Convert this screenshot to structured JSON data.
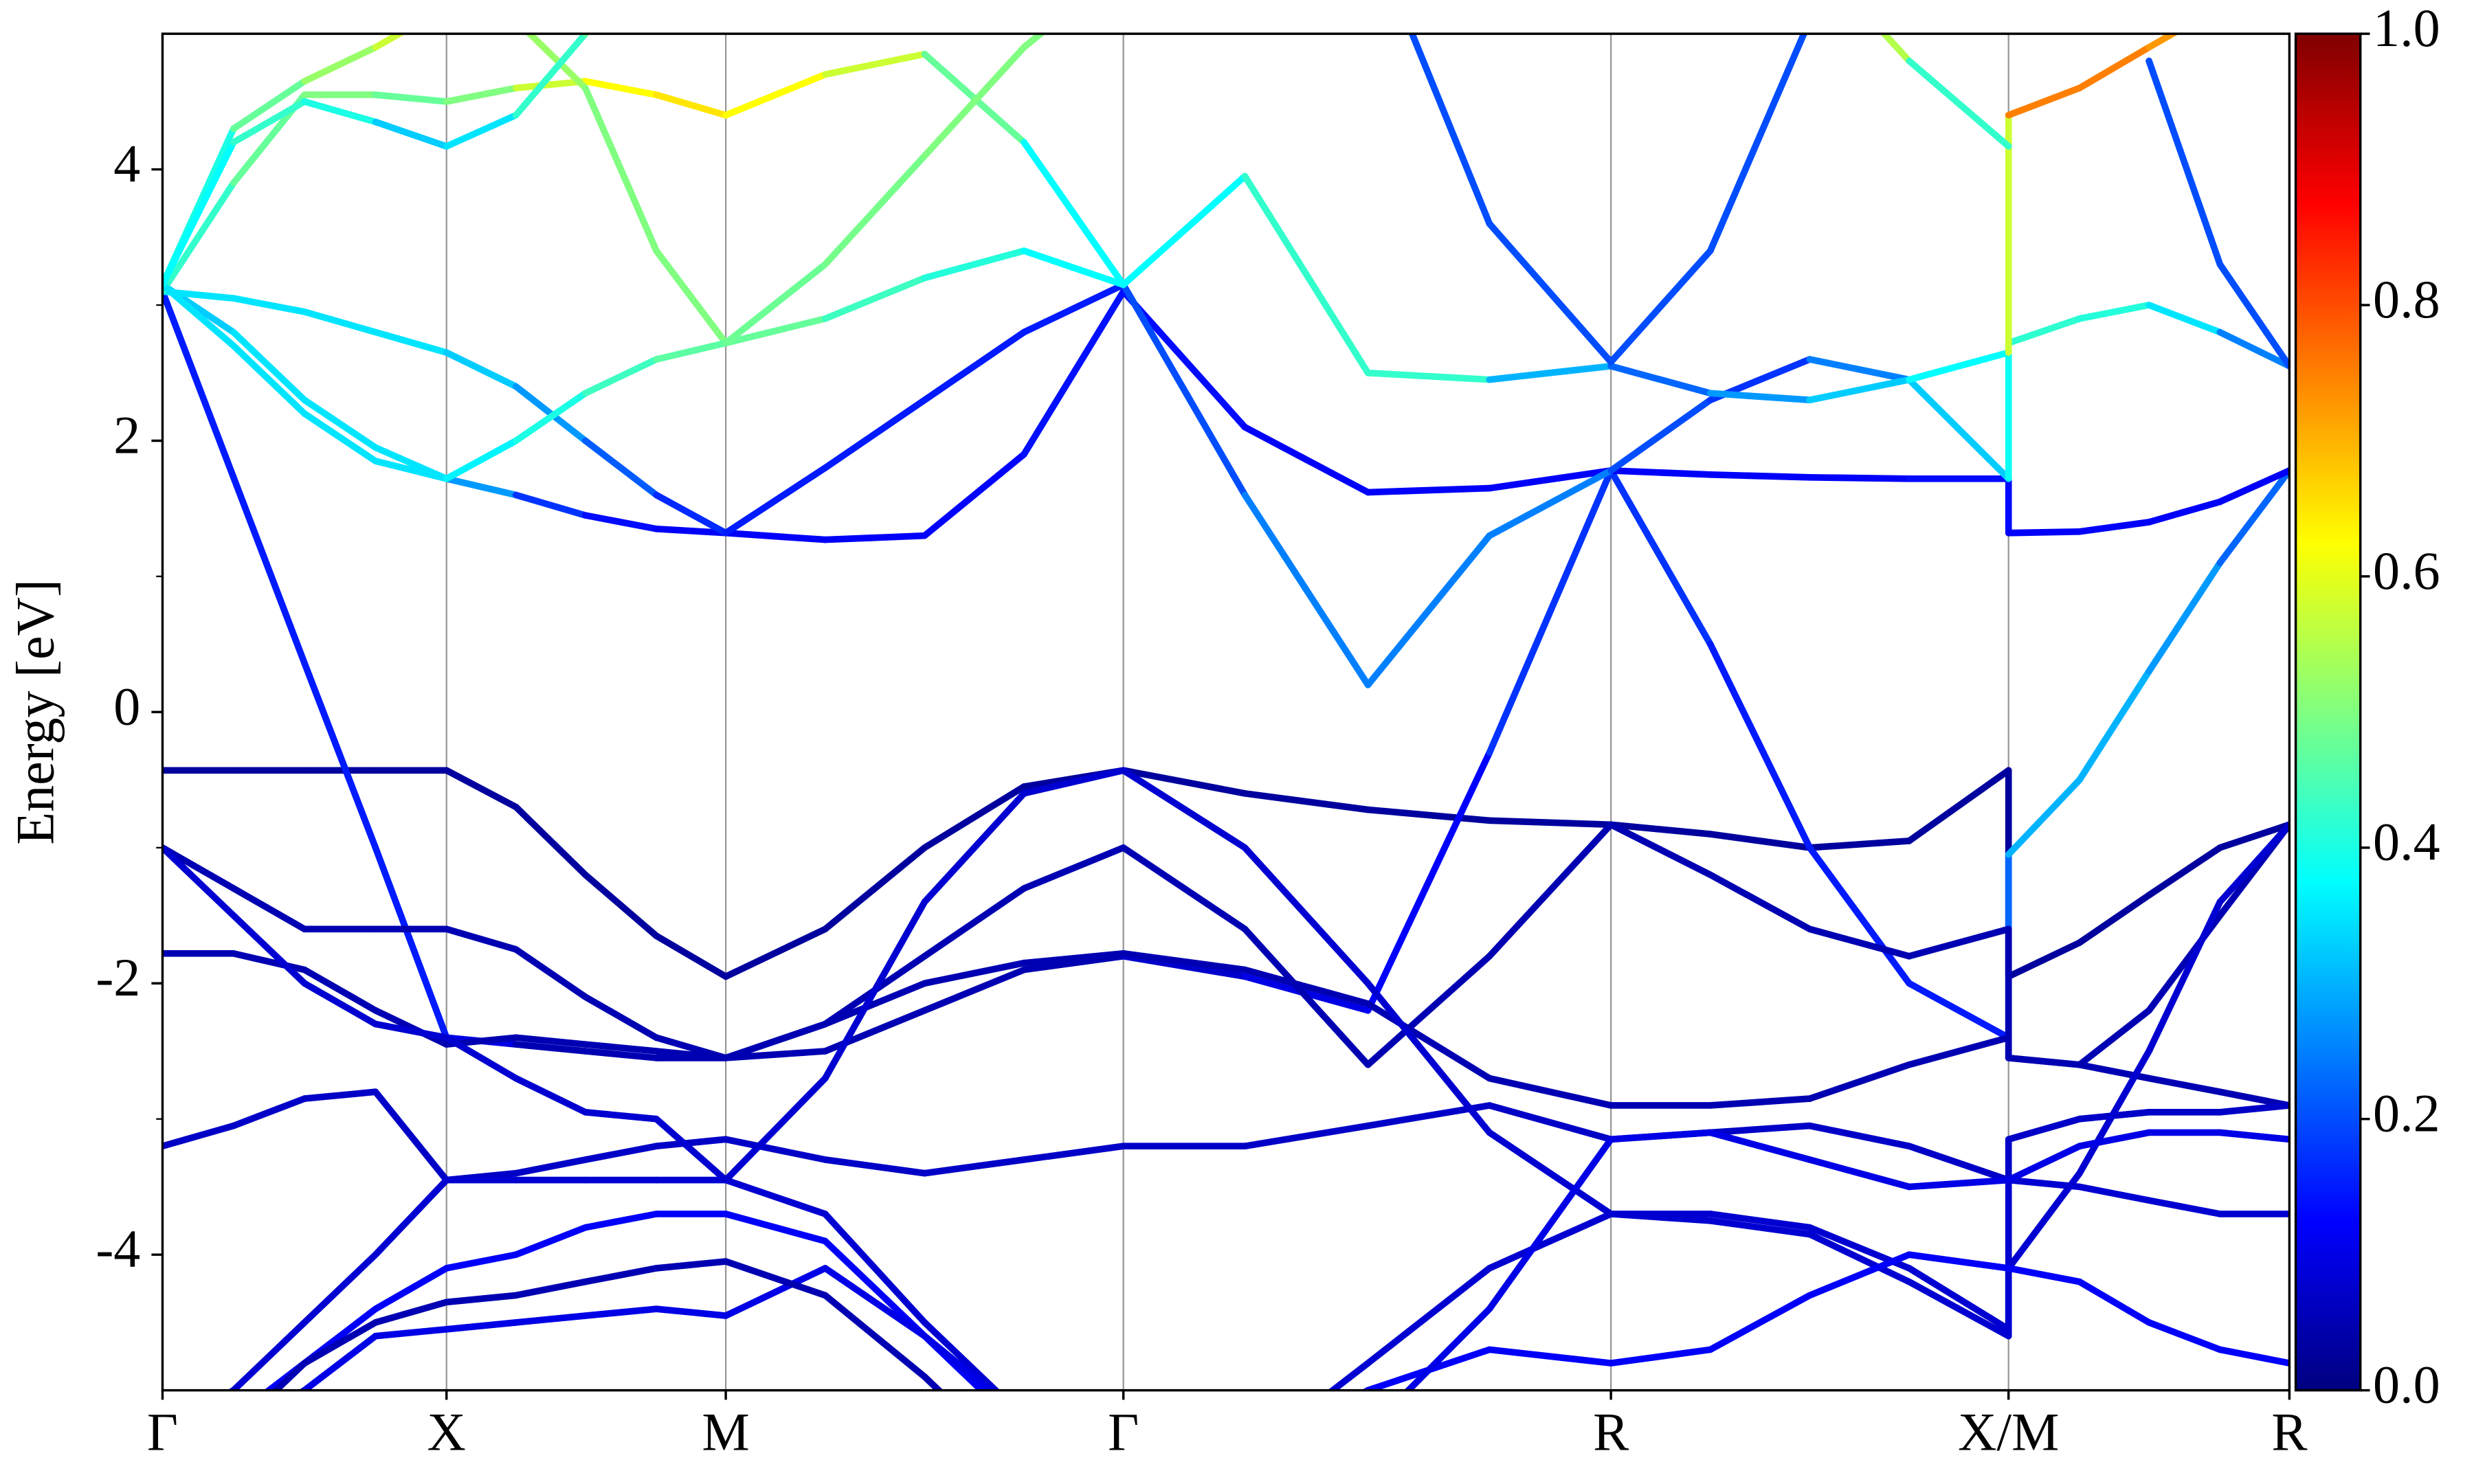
{
  "chart_data": {
    "type": "bands",
    "ylabel": "Energy [eV]",
    "x": [
      0,
      45,
      90,
      135,
      180,
      224,
      268,
      313,
      357,
      420,
      483,
      546,
      609,
      686,
      764,
      841,
      918,
      981,
      1044,
      1107,
      1170,
      1170,
      1215,
      1259,
      1304,
      1348
    ],
    "xlim": [
      0,
      1348
    ],
    "xticks": [
      {
        "value": 0,
        "label": "Γ"
      },
      {
        "value": 180,
        "label": "X"
      },
      {
        "value": 357,
        "label": "M"
      },
      {
        "value": 609,
        "label": "Γ"
      },
      {
        "value": 918,
        "label": "R"
      },
      {
        "value": 1170,
        "label": "X/M"
      },
      {
        "value": 1348,
        "label": "R"
      }
    ],
    "ylim": [
      -5,
      5
    ],
    "yticks": [
      -4,
      -2,
      0,
      2,
      4
    ],
    "yminorticks": [
      -3,
      -1,
      1,
      3
    ],
    "grid": true,
    "colormap": "jet",
    "colorbar": {
      "lim": [
        0,
        1
      ],
      "ticks": [
        {
          "value": 0,
          "label": "0.0"
        },
        {
          "value": 0.2,
          "label": "0.2"
        },
        {
          "value": 0.4,
          "label": "0.4"
        },
        {
          "value": 0.6,
          "label": "0.6"
        },
        {
          "value": 0.8,
          "label": "0.8"
        },
        {
          "value": 1,
          "label": "1.0"
        }
      ]
    },
    "series": [
      {
        "values": [
          -0.43,
          -0.43,
          -0.43,
          -0.43,
          -0.43,
          -0.7,
          -1.2,
          -1.65,
          -1.95,
          -1.6,
          -1.0,
          -0.55,
          -0.43,
          -0.6,
          -0.72,
          -0.8,
          -0.83,
          -0.9,
          -1.0,
          -0.95,
          -0.43,
          -1.95,
          -1.7,
          -1.35,
          -1.0,
          -0.83
        ],
        "weights": [
          0.03,
          0.03,
          0.03,
          0.03,
          0.03,
          0.03,
          0.03,
          0.03,
          0.03,
          0.03,
          0.03,
          0.03,
          0.03,
          0.03,
          0.03,
          0.03,
          0.03,
          0.03,
          0.03,
          0.03,
          0.03,
          0.03,
          0.03,
          0.03,
          0.03,
          0.03
        ]
      },
      {
        "values": [
          3.1,
          1.73,
          0.36,
          -1.0,
          -2.4,
          -2.45,
          -2.5,
          -2.55,
          -2.55,
          -2.5,
          -2.2,
          -1.9,
          -1.8,
          -1.95,
          -2.2,
          -0.3,
          1.78,
          0.5,
          -1.0,
          -2.0,
          -2.4,
          -1.05,
          -0.5,
          0.3,
          1.1,
          1.78
        ],
        "weights": [
          0.15,
          0.15,
          0.15,
          0.15,
          0.15,
          0.05,
          0.05,
          0.05,
          0.05,
          0.05,
          0.05,
          0.05,
          0.05,
          0.1,
          0.1,
          0.15,
          0.2,
          0.15,
          0.15,
          0.15,
          0.15,
          0.3,
          0.3,
          0.3,
          0.25,
          0.2
        ]
      },
      {
        "values": [
          3.15,
          2.8,
          2.3,
          1.95,
          1.72,
          1.6,
          1.45,
          1.35,
          1.32,
          1.27,
          1.3,
          1.9,
          3.1,
          2.1,
          1.62,
          1.65,
          1.78,
          1.75,
          1.73,
          1.72,
          1.72,
          1.32,
          1.33,
          1.4,
          1.55,
          1.78
        ],
        "weights": [
          0.3,
          0.35,
          0.35,
          0.35,
          0.35,
          0.2,
          0.15,
          0.12,
          0.12,
          0.12,
          0.12,
          0.13,
          0.15,
          0.12,
          0.12,
          0.12,
          0.12,
          0.12,
          0.12,
          0.12,
          0.15,
          0.12,
          0.12,
          0.12,
          0.12,
          0.12
        ]
      },
      {
        "values": [
          3.1,
          3.05,
          2.95,
          2.8,
          2.65,
          2.4,
          2.0,
          1.6,
          1.32,
          1.8,
          2.3,
          2.8,
          3.15,
          1.6,
          0.2,
          1.3,
          1.78,
          2.3,
          2.6,
          2.45,
          1.72,
          2.72,
          2.9,
          3.0,
          2.8,
          2.55
        ],
        "weights": [
          0.35,
          0.35,
          0.35,
          0.35,
          0.35,
          0.3,
          0.25,
          0.18,
          0.15,
          0.15,
          0.15,
          0.15,
          0.15,
          0.25,
          0.25,
          0.25,
          0.25,
          0.15,
          0.2,
          0.3,
          0.35,
          0.42,
          0.42,
          0.4,
          0.3,
          0.2
        ]
      },
      {
        "values": [
          3.1,
          3.9,
          4.55,
          4.55,
          4.5,
          4.6,
          4.65,
          4.55,
          4.4,
          4.7,
          4.85,
          4.2,
          3.15,
          3.95,
          2.5,
          2.45,
          2.55,
          2.35,
          2.3,
          2.45,
          2.65,
          4.4,
          4.6,
          4.9,
          5.2,
          5.5
        ],
        "weights": [
          0.4,
          0.45,
          0.5,
          0.5,
          0.45,
          0.55,
          0.6,
          0.65,
          0.65,
          0.6,
          0.55,
          0.4,
          0.35,
          0.4,
          0.45,
          0.4,
          0.2,
          0.25,
          0.3,
          0.35,
          0.4,
          0.75,
          0.75,
          0.75,
          0.7,
          0.6
        ]
      },
      {
        "values": [
          3.15,
          4.3,
          4.65,
          4.9,
          5.2,
          5.1,
          4.6,
          3.4,
          2.72,
          2.9,
          3.2,
          3.4,
          3.15,
          null,
          5.8,
          3.6,
          2.58,
          3.4,
          5.1,
          null,
          null,
          null,
          null,
          4.8,
          3.3,
          2.55
        ],
        "weights": [
          0.35,
          0.45,
          0.5,
          0.55,
          0.6,
          0.55,
          0.5,
          0.5,
          0.5,
          0.45,
          0.42,
          0.4,
          0.35,
          null,
          0.2,
          0.2,
          0.2,
          0.2,
          0.2,
          null,
          null,
          null,
          null,
          0.2,
          0.2,
          0.2
        ]
      },
      {
        "values": [
          3.15,
          2.7,
          2.2,
          1.85,
          1.72,
          2.0,
          2.35,
          2.6,
          2.72,
          3.3,
          4.1,
          4.9,
          5.5,
          null,
          null,
          null,
          null,
          null,
          null,
          null,
          null,
          null,
          null,
          null,
          null,
          null
        ],
        "weights": [
          0.35,
          0.35,
          0.35,
          0.35,
          0.35,
          0.38,
          0.42,
          0.45,
          0.48,
          0.48,
          0.5,
          0.5,
          0.5,
          null,
          null,
          null,
          null,
          null,
          null,
          null,
          null,
          null,
          null,
          null,
          null,
          null
        ]
      },
      {
        "values": [
          -1.0,
          -1.3,
          -1.6,
          -1.6,
          -1.6,
          -1.75,
          -2.1,
          -2.4,
          -2.55,
          -2.3,
          -1.8,
          -1.3,
          -1.0,
          -1.6,
          -2.6,
          -1.8,
          -0.83,
          -1.2,
          -1.6,
          -1.8,
          -1.6,
          -2.55,
          -2.6,
          -2.2,
          -1.5,
          -0.83
        ],
        "weights": [
          0.05,
          0.05,
          0.05,
          0.05,
          0.05,
          0.05,
          0.05,
          0.05,
          0.05,
          0.05,
          0.05,
          0.05,
          0.05,
          0.05,
          0.05,
          0.05,
          0.05,
          0.05,
          0.05,
          0.05,
          0.05,
          0.05,
          0.05,
          0.05,
          0.05,
          0.05
        ]
      },
      {
        "values": [
          -1.78,
          -1.78,
          -1.9,
          -2.2,
          -2.45,
          -2.4,
          -2.45,
          -2.5,
          -2.55,
          -2.3,
          -2.0,
          -1.85,
          -1.78,
          -1.9,
          -2.15,
          -2.7,
          -2.9,
          -2.9,
          -2.85,
          -2.6,
          -2.4,
          -2.55,
          -2.6,
          -2.7,
          -2.8,
          -2.9
        ],
        "weights": [
          0.05,
          0.05,
          0.05,
          0.05,
          0.05,
          0.05,
          0.05,
          0.05,
          0.05,
          0.05,
          0.05,
          0.05,
          0.05,
          0.05,
          0.05,
          0.05,
          0.05,
          0.05,
          0.05,
          0.05,
          0.05,
          0.05,
          0.05,
          0.05,
          0.05,
          0.05
        ]
      },
      {
        "values": [
          -3.2,
          -3.05,
          -2.85,
          -2.8,
          -3.45,
          -3.4,
          -3.3,
          -3.2,
          -3.15,
          -3.3,
          -3.4,
          -3.3,
          -3.2,
          -3.2,
          -3.05,
          -2.9,
          -3.15,
          -3.1,
          -3.05,
          -3.2,
          -3.45,
          -3.15,
          -3.0,
          -2.95,
          -2.95,
          -2.9
        ],
        "weights": [
          0.07,
          0.07,
          0.07,
          0.07,
          0.07,
          0.07,
          0.07,
          0.07,
          0.07,
          0.07,
          0.07,
          0.07,
          0.07,
          0.07,
          0.07,
          0.07,
          0.07,
          0.07,
          0.07,
          0.07,
          0.07,
          0.07,
          0.07,
          0.07,
          0.07,
          0.07
        ]
      },
      {
        "values": [
          -1.0,
          -1.5,
          -2.0,
          -2.3,
          -2.4,
          -2.7,
          -2.95,
          -3.0,
          -3.45,
          -2.7,
          -1.4,
          -0.6,
          -0.43,
          -1.0,
          -2.0,
          -3.1,
          -3.7,
          -3.7,
          -3.8,
          -4.1,
          -4.55,
          -4.1,
          -3.4,
          -2.5,
          -1.4,
          -0.83
        ],
        "weights": [
          0.08,
          0.08,
          0.08,
          0.08,
          0.08,
          0.08,
          0.08,
          0.08,
          0.08,
          0.08,
          0.08,
          0.08,
          0.08,
          0.08,
          0.08,
          0.08,
          0.08,
          0.08,
          0.08,
          0.08,
          0.08,
          0.08,
          0.08,
          0.08,
          0.08,
          0.08
        ]
      },
      {
        "values": [
          -5.3,
          -5.0,
          -4.5,
          -4.0,
          -3.45,
          -3.45,
          -3.45,
          -3.45,
          -3.45,
          -3.7,
          -4.5,
          -5.2,
          -5.6,
          -5.5,
          -4.8,
          -4.1,
          -3.7,
          -3.75,
          -3.85,
          -4.2,
          -4.6,
          -3.45,
          -3.5,
          -3.6,
          -3.7,
          -3.7
        ],
        "weights": [
          0.08,
          0.08,
          0.08,
          0.08,
          0.08,
          0.08,
          0.08,
          0.08,
          0.08,
          0.08,
          0.08,
          0.08,
          0.08,
          0.08,
          0.08,
          0.08,
          0.08,
          0.08,
          0.08,
          0.08,
          0.08,
          0.08,
          0.08,
          0.08,
          0.08,
          0.08
        ]
      },
      {
        "values": [
          -5.5,
          -5.2,
          -4.8,
          -4.4,
          -4.1,
          -4.0,
          -3.8,
          -3.7,
          -3.7,
          -3.9,
          -4.6,
          -5.3,
          -5.8,
          -5.5,
          -5.0,
          -4.7,
          -4.8,
          -4.7,
          -4.3,
          -4.0,
          -4.1,
          -4.1,
          -4.2,
          -4.5,
          -4.7,
          -4.8
        ],
        "weights": [
          0.12,
          0.12,
          0.12,
          0.12,
          0.12,
          0.12,
          0.12,
          0.12,
          0.12,
          0.12,
          0.12,
          0.12,
          0.12,
          0.12,
          0.12,
          0.12,
          0.12,
          0.12,
          0.12,
          0.12,
          0.12,
          0.12,
          0.12,
          0.12,
          0.12,
          0.12
        ]
      },
      {
        "values": [
          -5.5,
          -5.3,
          -5.0,
          -4.6,
          -4.55,
          -4.5,
          -4.45,
          -4.4,
          -4.45,
          -4.1,
          -4.6,
          -5.2,
          -5.8,
          -5.8,
          -5.3,
          -4.4,
          -3.15,
          -3.1,
          -3.3,
          -3.5,
          -3.45,
          -3.45,
          -3.2,
          -3.1,
          -3.1,
          -3.15
        ],
        "weights": [
          0.1,
          0.1,
          0.1,
          0.1,
          0.1,
          0.1,
          0.1,
          0.1,
          0.1,
          0.1,
          0.1,
          0.1,
          0.1,
          0.1,
          0.1,
          0.1,
          0.1,
          0.1,
          0.1,
          0.1,
          0.1,
          0.1,
          0.1,
          0.1,
          0.1,
          0.1
        ]
      },
      {
        "values": [
          -5.6,
          -5.3,
          -4.8,
          -4.5,
          -4.35,
          -4.3,
          -4.2,
          -4.1,
          -4.05,
          -4.3,
          -4.9,
          -5.6,
          null,
          null,
          null,
          null,
          null,
          null,
          null,
          null,
          null,
          null,
          null,
          null,
          null,
          null
        ],
        "weights": [
          0.05,
          0.05,
          0.05,
          0.05,
          0.05,
          0.05,
          0.05,
          0.05,
          0.05,
          0.05,
          0.05,
          0.05,
          null,
          null,
          null,
          null,
          null,
          null,
          null,
          null,
          null,
          null,
          null,
          null,
          null,
          null
        ]
      },
      {
        "values": [
          3.15,
          4.2,
          4.5,
          4.35,
          4.17,
          4.4,
          5.0,
          5.6,
          null,
          null,
          null,
          null,
          null,
          null,
          null,
          null,
          null,
          null,
          5.6,
          4.8,
          4.17,
          null,
          null,
          null,
          null,
          null
        ],
        "weights": [
          0.35,
          0.4,
          0.45,
          0.35,
          0.3,
          0.4,
          0.45,
          0.5,
          null,
          null,
          null,
          null,
          null,
          null,
          null,
          null,
          null,
          null,
          0.6,
          0.5,
          0.35,
          null,
          null,
          null,
          null,
          null
        ]
      }
    ]
  }
}
